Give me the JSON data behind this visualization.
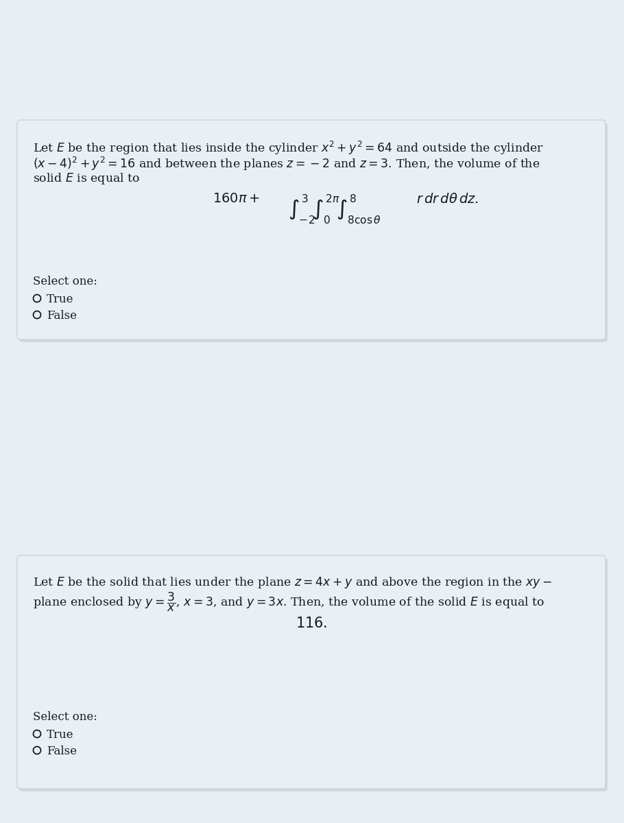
{
  "page_bg": "#e8eef2",
  "card_color": "#e8f0f5",
  "card_edge_color": "#c0d0dc",
  "shadow_color": "#c0ccd4",
  "text_color": "#1a1a1a",
  "q1_lines": [
    "Let $E$ be the region that lies inside the cylinder $x^2 + y^2 = 64$ and outside the cylinder",
    "$(x-4)^2 + y^2 = 16$ and between the planes $z = -2$ and $z = 3$. Then, the volume of the",
    "solid $E$ is equal to"
  ],
  "q1_formula_parts": {
    "prefix": "$160\\pi +$",
    "integral": "$\\int_{-2}^{3}\\int_{0}^{2\\pi}\\int_{8\\cos\\theta}^{8}$",
    "integrand": "$r\\, dr\\, d\\theta\\, dz.$"
  },
  "q1_select": "Select one:",
  "q1_options": [
    "True",
    "False"
  ],
  "q2_lines": [
    "Let $E$ be the solid that lies under the plane $z = 4x + y$ and above the region in the $xy-$",
    "plane enclosed by $y = \\dfrac{3}{x}$, $x = 3$, and $y = 3x$. Then, the volume of the solid $E$ is equal to"
  ],
  "q2_formula": "$116.$",
  "q2_select": "Select one:",
  "q2_options": [
    "True",
    "False"
  ],
  "body_fontsize": 12.5,
  "formula_fontsize": 14,
  "select_fontsize": 12,
  "option_fontsize": 12
}
